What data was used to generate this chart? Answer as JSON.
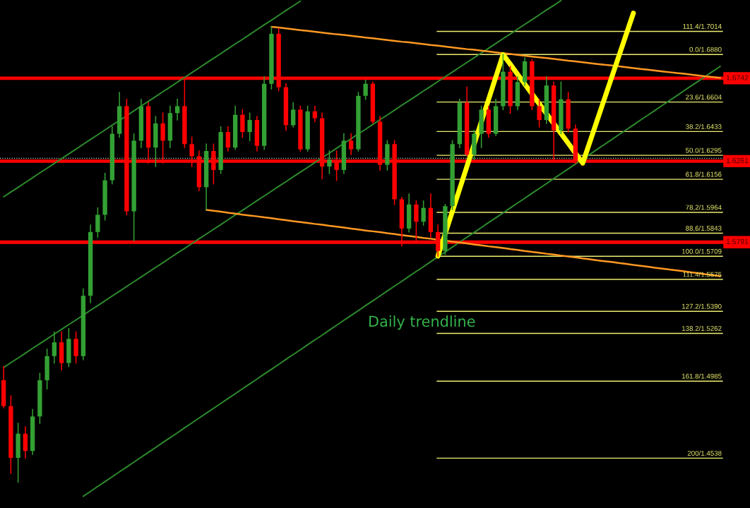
{
  "chart_data": {
    "type": "candlestick",
    "categories": [
      null,
      null,
      null,
      null,
      null,
      null,
      null,
      null,
      null,
      null,
      null,
      null,
      null,
      null,
      null,
      null,
      null,
      null,
      null,
      null,
      null,
      null,
      null,
      null,
      null,
      null,
      null,
      null,
      null,
      null,
      null,
      null,
      null,
      null,
      null,
      null,
      null,
      null,
      null,
      null,
      null,
      null,
      null,
      null,
      null,
      null,
      null,
      null,
      null,
      null,
      null,
      null,
      null,
      null,
      null,
      null,
      null,
      null,
      null,
      null,
      null,
      null,
      null,
      null,
      null,
      null,
      null,
      null,
      null,
      null,
      null,
      null,
      null,
      null,
      null,
      null,
      null,
      null,
      null,
      null,
      null,
      null,
      null,
      null,
      null,
      null,
      null,
      null,
      null,
      null,
      null,
      null,
      null,
      null,
      null,
      null,
      null,
      null,
      null,
      null
    ],
    "ohlc": [
      [
        1.499,
        1.507,
        1.483,
        1.484
      ],
      [
        1.484,
        1.49,
        1.445,
        1.454
      ],
      [
        1.454,
        1.474,
        1.44,
        1.468
      ],
      [
        1.468,
        1.472,
        1.454,
        1.458
      ],
      [
        1.458,
        1.482,
        1.456,
        1.478
      ],
      [
        1.478,
        1.503,
        1.474,
        1.499
      ],
      [
        1.499,
        1.517,
        1.494,
        1.513
      ],
      [
        1.513,
        1.527,
        1.509,
        1.521
      ],
      [
        1.521,
        1.527,
        1.505,
        1.509
      ],
      [
        1.509,
        1.529,
        1.507,
        1.523
      ],
      [
        1.523,
        1.527,
        1.509,
        1.513
      ],
      [
        1.513,
        1.552,
        1.511,
        1.548
      ],
      [
        1.548,
        1.589,
        1.544,
        1.585
      ],
      [
        1.585,
        1.599,
        1.582,
        1.595
      ],
      [
        1.595,
        1.619,
        1.592,
        1.615
      ],
      [
        1.615,
        1.646,
        1.613,
        1.642
      ],
      [
        1.642,
        1.666,
        1.64,
        1.658
      ],
      [
        1.658,
        1.662,
        1.595,
        1.597
      ],
      [
        1.597,
        1.642,
        1.58,
        1.638
      ],
      [
        1.638,
        1.662,
        1.634,
        1.658
      ],
      [
        1.658,
        1.66,
        1.625,
        1.634
      ],
      [
        1.634,
        1.652,
        1.623,
        1.648
      ],
      [
        1.648,
        1.654,
        1.625,
        1.638
      ],
      [
        1.638,
        1.658,
        1.634,
        1.654
      ],
      [
        1.654,
        1.662,
        1.65,
        1.658
      ],
      [
        1.658,
        1.673,
        1.634,
        1.636
      ],
      [
        1.636,
        1.64,
        1.623,
        1.629
      ],
      [
        1.629,
        1.632,
        1.609,
        1.611
      ],
      [
        1.611,
        1.636,
        1.598,
        1.632
      ],
      [
        1.632,
        1.636,
        1.613,
        1.621
      ],
      [
        1.621,
        1.646,
        1.619,
        1.643
      ],
      [
        1.643,
        1.646,
        1.632,
        1.634
      ],
      [
        1.634,
        1.658,
        1.633,
        1.653
      ],
      [
        1.653,
        1.656,
        1.64,
        1.643
      ],
      [
        1.643,
        1.654,
        1.638,
        1.65
      ],
      [
        1.65,
        1.652,
        1.632,
        1.635
      ],
      [
        1.635,
        1.675,
        1.633,
        1.671
      ],
      [
        1.671,
        1.704,
        1.668,
        1.7
      ],
      [
        1.7,
        1.703,
        1.667,
        1.669
      ],
      [
        1.669,
        1.671,
        1.644,
        1.647
      ],
      [
        1.647,
        1.66,
        1.646,
        1.656
      ],
      [
        1.656,
        1.658,
        1.632,
        1.633
      ],
      [
        1.633,
        1.658,
        1.632,
        1.655
      ],
      [
        1.655,
        1.658,
        1.649,
        1.651
      ],
      [
        1.651,
        1.654,
        1.616,
        1.623
      ],
      [
        1.623,
        1.632,
        1.619,
        1.627
      ],
      [
        1.627,
        1.632,
        1.615,
        1.621
      ],
      [
        1.621,
        1.642,
        1.619,
        1.638
      ],
      [
        1.638,
        1.642,
        1.63,
        1.633
      ],
      [
        1.633,
        1.666,
        1.632,
        1.664
      ],
      [
        1.664,
        1.673,
        1.662,
        1.671
      ],
      [
        1.671,
        1.672,
        1.648,
        1.649
      ],
      [
        1.649,
        1.652,
        1.621,
        1.624
      ],
      [
        1.624,
        1.638,
        1.621,
        1.636
      ],
      [
        1.636,
        1.638,
        1.601,
        1.604
      ],
      [
        1.604,
        1.605,
        1.577,
        1.587
      ],
      [
        1.587,
        1.607,
        1.585,
        1.601
      ],
      [
        1.601,
        1.603,
        1.58,
        1.591
      ],
      [
        1.591,
        1.603,
        1.589,
        1.599
      ],
      [
        1.599,
        1.607,
        1.582,
        1.585
      ],
      [
        1.585,
        1.589,
        1.571,
        1.574
      ],
      [
        1.574,
        1.601,
        1.572,
        1.6
      ],
      [
        1.6,
        1.638,
        1.598,
        1.636
      ],
      [
        1.636,
        1.662,
        1.634,
        1.66
      ],
      [
        1.66,
        1.669,
        1.629,
        1.63
      ],
      [
        1.63,
        1.644,
        1.627,
        1.642
      ],
      [
        1.642,
        1.658,
        1.634,
        1.656
      ],
      [
        1.656,
        1.658,
        1.64,
        1.642
      ],
      [
        1.642,
        1.662,
        1.641,
        1.658
      ],
      [
        1.658,
        1.688,
        1.656,
        1.678
      ],
      [
        1.678,
        1.681,
        1.654,
        1.658
      ],
      [
        1.658,
        1.675,
        1.656,
        1.672
      ],
      [
        1.672,
        1.686,
        1.67,
        1.684
      ],
      [
        1.684,
        1.685,
        1.656,
        1.658
      ],
      [
        1.658,
        1.662,
        1.646,
        1.65
      ],
      [
        1.65,
        1.675,
        1.648,
        1.67
      ],
      [
        1.67,
        1.672,
        1.627,
        1.644
      ],
      [
        1.644,
        1.672,
        1.642,
        1.662
      ],
      [
        1.662,
        1.666,
        1.643,
        1.645
      ],
      [
        1.645,
        1.647,
        1.625,
        1.626
      ],
      null,
      null,
      null,
      null,
      null,
      null,
      null,
      null,
      null,
      null,
      null,
      null,
      null,
      null,
      null,
      null,
      null,
      null,
      null,
      null
    ],
    "colors": [
      "#ff0000",
      "#ff0000",
      "#33a033",
      "#ff0000",
      "#33a033",
      "#33a033",
      "#33a033",
      "#33a033",
      "#ff0000",
      "#33a033",
      "#ff0000",
      "#33a033",
      "#33a033",
      "#33a033",
      "#33a033",
      "#33a033",
      "#33a033",
      "#ff0000",
      "#33a033",
      "#33a033",
      "#ff0000",
      "#33a033",
      "#ff0000",
      "#33a033",
      "#33a033",
      "#ff0000",
      "#ff0000",
      "#ff0000",
      "#33a033",
      "#ff0000",
      "#33a033",
      "#ff0000",
      "#33a033",
      "#ff0000",
      "#33a033",
      "#ff0000",
      "#33a033",
      "#33a033",
      "#ff0000",
      "#ff0000",
      "#33a033",
      "#ff0000",
      "#33a033",
      "#ff0000",
      "#ff0000",
      "#33a033",
      "#ff0000",
      "#33a033",
      "#ff0000",
      "#33a033",
      "#33a033",
      "#ff0000",
      "#ff0000",
      "#33a033",
      "#ff0000",
      "#ff0000",
      "#33a033",
      "#ff0000",
      "#33a033",
      "#ff0000",
      "#ff0000",
      "#33a033",
      "#33a033",
      "#33a033",
      "#ff0000",
      "#33a033",
      "#33a033",
      "#ff0000",
      "#33a033",
      "#33a033",
      "#ff0000",
      "#33a033",
      "#33a033",
      "#ff0000",
      "#ff0000",
      "#33a033",
      "#ff0000",
      "#33a033",
      "#ff0000",
      "#ff0000",
      null,
      null,
      null,
      null,
      null,
      null,
      null,
      null,
      null,
      null,
      null,
      null,
      null,
      null,
      null,
      null,
      null,
      null,
      null,
      null
    ],
    "ylim": [
      1.4249,
      1.7196
    ],
    "tick_labels": false,
    "series": [
      {
        "type": "line",
        "color": "#2d8c2d",
        "values": [
          1.6054,
          1.6082,
          1.6109,
          1.6137,
          1.6165,
          1.6193,
          1.622,
          1.6248,
          1.6276,
          1.6303,
          1.6331,
          1.6359,
          1.6387,
          1.6414,
          1.6442,
          1.647,
          1.6497,
          1.6525,
          1.6553,
          1.6581,
          1.6608,
          1.6636,
          1.6664,
          1.6691,
          1.6719,
          1.6747,
          1.6775,
          1.6802,
          1.683,
          1.6858,
          1.6885,
          1.6913,
          1.6941,
          1.6968,
          1.6996,
          1.7024,
          1.7052,
          1.7079,
          1.7107,
          1.7135,
          1.7162,
          1.719,
          null,
          null,
          null,
          null,
          null,
          null,
          null,
          null,
          null,
          null,
          null,
          null,
          null,
          null,
          null,
          null,
          null,
          null,
          null,
          null,
          null,
          null,
          null,
          null,
          null,
          null,
          null,
          null,
          null,
          null,
          null,
          null,
          null,
          null,
          null,
          null,
          null,
          null,
          null,
          null,
          null,
          null,
          null,
          null,
          null,
          null,
          null,
          null,
          null,
          null,
          null,
          null,
          null,
          null,
          null,
          null,
          null,
          null
        ]
      },
      {
        "type": "line",
        "color": "#2d8c2d",
        "values": [
          1.5064,
          1.5092,
          1.5119,
          1.5147,
          1.5175,
          1.5202,
          1.523,
          1.5258,
          1.5285,
          1.5313,
          1.534,
          1.5368,
          1.5396,
          1.5423,
          1.5451,
          1.5479,
          1.5506,
          1.5534,
          1.5562,
          1.5589,
          1.5617,
          1.5645,
          1.5672,
          1.57,
          1.5728,
          1.5755,
          1.5783,
          1.5811,
          1.5838,
          1.5866,
          1.5893,
          1.5921,
          1.5949,
          1.5976,
          1.6004,
          1.6032,
          1.6059,
          1.6087,
          1.6115,
          1.6142,
          1.617,
          1.6198,
          1.6225,
          1.6253,
          1.6281,
          1.6308,
          1.6336,
          1.6364,
          1.6391,
          1.6419,
          1.6446,
          1.6474,
          1.6502,
          1.6529,
          1.6557,
          1.6585,
          1.6612,
          1.664,
          1.6668,
          1.6695,
          1.6723,
          1.6751,
          1.6778,
          1.6806,
          1.6834,
          1.6861,
          1.6889,
          1.6916,
          1.6944,
          1.6972,
          1.6999,
          1.7027,
          1.7055,
          1.7082,
          1.711,
          1.7138,
          1.7165,
          1.7193,
          null,
          null,
          null,
          null,
          null,
          null,
          null,
          null,
          null,
          null,
          null,
          null,
          null,
          null,
          null,
          null,
          null,
          null,
          null,
          null,
          null,
          null
        ]
      },
      {
        "type": "line",
        "color": "#2d8c2d",
        "values": [
          null,
          null,
          null,
          null,
          null,
          null,
          null,
          null,
          null,
          null,
          null,
          1.4317,
          1.4345,
          1.4374,
          1.4402,
          1.443,
          1.4459,
          1.4487,
          1.4515,
          1.4544,
          1.4572,
          1.46,
          1.4629,
          1.4657,
          1.4685,
          1.4714,
          1.4742,
          1.4771,
          1.4799,
          1.4827,
          1.4856,
          1.4884,
          1.4912,
          1.4941,
          1.4969,
          1.4997,
          1.5026,
          1.5054,
          1.5082,
          1.5111,
          1.5139,
          1.5167,
          1.5196,
          1.5224,
          1.5252,
          1.5281,
          1.5309,
          1.5338,
          1.5366,
          1.5394,
          1.5423,
          1.5451,
          1.5479,
          1.5508,
          1.5536,
          1.5564,
          1.5593,
          1.5621,
          1.5649,
          1.5678,
          1.5706,
          1.5734,
          1.5763,
          1.5791,
          1.582,
          1.5848,
          1.5876,
          1.5905,
          1.5933,
          1.5961,
          1.599,
          1.6018,
          1.6046,
          1.6075,
          1.6103,
          1.6131,
          1.616,
          1.6188,
          1.6216,
          1.6245,
          1.6273,
          1.6301,
          1.633,
          1.6358,
          1.6386,
          1.6415,
          1.6443,
          1.6471,
          1.65,
          1.6528,
          1.6556,
          1.6585,
          1.6613,
          1.6641,
          1.667,
          1.6698,
          1.6726,
          1.6755,
          1.6783,
          1.6811
        ]
      },
      {
        "type": "line",
        "color": "#ff9922",
        "values": [
          null,
          null,
          null,
          null,
          null,
          null,
          null,
          null,
          null,
          null,
          null,
          null,
          null,
          null,
          null,
          null,
          null,
          null,
          null,
          null,
          null,
          null,
          null,
          null,
          null,
          null,
          null,
          null,
          null,
          null,
          null,
          null,
          null,
          null,
          null,
          null,
          null,
          1.704,
          1.7036,
          1.7031,
          1.7026,
          1.7021,
          1.7017,
          1.7012,
          1.7007,
          1.7002,
          1.6997,
          1.6993,
          1.6988,
          1.6983,
          1.6978,
          1.6974,
          1.6969,
          1.6964,
          1.6959,
          1.6954,
          1.695,
          1.6945,
          1.694,
          1.6935,
          1.6931,
          1.6926,
          1.6921,
          1.6916,
          1.6911,
          1.6907,
          1.6902,
          1.6897,
          1.6892,
          1.6887,
          1.6883,
          1.6878,
          1.6873,
          1.6868,
          1.6863,
          1.6859,
          1.6854,
          1.6849,
          1.6844,
          1.684,
          1.6835,
          1.683,
          1.6825,
          1.682,
          1.6816,
          1.6811,
          1.6806,
          1.6801,
          1.6796,
          1.6792,
          1.6787,
          1.6782,
          1.6777,
          1.6772,
          1.6768,
          1.6763,
          1.6758,
          1.6753,
          1.6749,
          1.6744
        ]
      },
      {
        "type": "line",
        "color": "#ff9922",
        "values": [
          null,
          null,
          null,
          null,
          null,
          null,
          null,
          null,
          null,
          null,
          null,
          null,
          null,
          null,
          null,
          null,
          null,
          null,
          null,
          null,
          null,
          null,
          null,
          null,
          null,
          null,
          null,
          null,
          1.5978,
          1.5973,
          1.5968,
          1.5962,
          1.5957,
          1.5951,
          1.5946,
          1.5941,
          1.5935,
          1.593,
          1.5924,
          1.5919,
          1.5913,
          1.5908,
          1.5903,
          1.5897,
          1.5892,
          1.5886,
          1.5881,
          1.5876,
          1.587,
          1.5865,
          1.5859,
          1.5854,
          1.5849,
          1.5843,
          1.5838,
          1.5832,
          1.5827,
          1.5822,
          1.5816,
          1.5811,
          1.5805,
          1.58,
          1.5794,
          1.5789,
          1.5784,
          1.5778,
          1.5773,
          1.5767,
          1.5762,
          1.5757,
          1.5751,
          1.5746,
          1.574,
          1.5735,
          1.573,
          1.5724,
          1.5719,
          1.5713,
          1.5708,
          1.5703,
          1.5697,
          1.5692,
          1.5686,
          1.5681,
          1.5676,
          1.567,
          1.5665,
          1.5659,
          1.5654,
          1.5649,
          1.5643,
          1.5638,
          1.5632,
          1.5627,
          1.5622,
          1.5616,
          1.5611,
          1.5605,
          1.56,
          1.5594
        ]
      },
      {
        "type": "line",
        "color": "#ffff00",
        "values": [
          null,
          null,
          null,
          null,
          null,
          null,
          null,
          null,
          null,
          null,
          null,
          null,
          null,
          null,
          null,
          null,
          null,
          null,
          null,
          null,
          null,
          null,
          null,
          null,
          null,
          null,
          null,
          null,
          null,
          null,
          null,
          null,
          null,
          null,
          null,
          null,
          null,
          null,
          null,
          null,
          null,
          null,
          null,
          null,
          null,
          null,
          null,
          null,
          null,
          null,
          null,
          null,
          null,
          null,
          null,
          null,
          null,
          null,
          null,
          null,
          1.571,
          1.584,
          1.597,
          1.61,
          1.623,
          1.636,
          1.649,
          1.662,
          1.675,
          1.688,
          1.6823,
          1.6765,
          1.6708,
          1.6651,
          1.6594,
          1.6536,
          1.6479,
          1.6422,
          1.6365,
          1.6307,
          1.625,
          1.6374,
          1.6499,
          1.6623,
          1.6747,
          1.6871,
          1.6996,
          1.712,
          null,
          null,
          null,
          null,
          null,
          null,
          null,
          null,
          null,
          null,
          null,
          null
        ]
      }
    ],
    "ref_lines": [
      {
        "axis": "y",
        "value": 1.6278,
        "color": "#c8c8c8",
        "line_style": "dotted"
      },
      {
        "axis": "y",
        "value": 1.6742,
        "label": "1.6742",
        "color": "#ff0000"
      },
      {
        "axis": "y",
        "value": 1.6261,
        "label": "1.6261",
        "color": "#ff0000"
      },
      {
        "axis": "y",
        "value": 1.5791,
        "label": "1.5791",
        "color": "#ff0000"
      },
      {
        "axis": "y",
        "value": 1.7014,
        "label": "111.4/1.7014",
        "color": "#eeee70"
      },
      {
        "axis": "y",
        "value": 1.688,
        "label": "0.0/1.6880",
        "color": "#eeee70"
      },
      {
        "axis": "y",
        "value": 1.6604,
        "label": "23.6/1.6604",
        "color": "#eeee70"
      },
      {
        "axis": "y",
        "value": 1.6433,
        "label": "38.2/1.6433",
        "color": "#eeee70"
      },
      {
        "axis": "y",
        "value": 1.6295,
        "label": "50.0/1.6295",
        "color": "#eeee70"
      },
      {
        "axis": "y",
        "value": 1.6156,
        "label": "61.8/1.6156",
        "color": "#eeee70"
      },
      {
        "axis": "y",
        "value": 1.5964,
        "label": "78,2/1.5964",
        "color": "#eeee70"
      },
      {
        "axis": "y",
        "value": 1.5843,
        "label": "88,6/1.5843",
        "color": "#eeee70"
      },
      {
        "axis": "y",
        "value": 1.5709,
        "label": "100.0/1.5709",
        "color": "#eeee70"
      },
      {
        "axis": "y",
        "value": 1.5575,
        "label": "111.4/1.5575",
        "color": "#eeee70"
      },
      {
        "axis": "y",
        "value": 1.539,
        "label": "127.2/1.5390",
        "color": "#eeee70"
      },
      {
        "axis": "y",
        "value": 1.5262,
        "label": "138.2/1.5262",
        "color": "#eeee70"
      },
      {
        "axis": "y",
        "value": 1.4985,
        "label": "161.8/1.4985",
        "color": "#eeee70"
      },
      {
        "axis": "y",
        "value": 1.4538,
        "label": "200/1.4538",
        "color": "#eeee70"
      }
    ],
    "annotations": [
      "Daily trendline"
    ]
  }
}
